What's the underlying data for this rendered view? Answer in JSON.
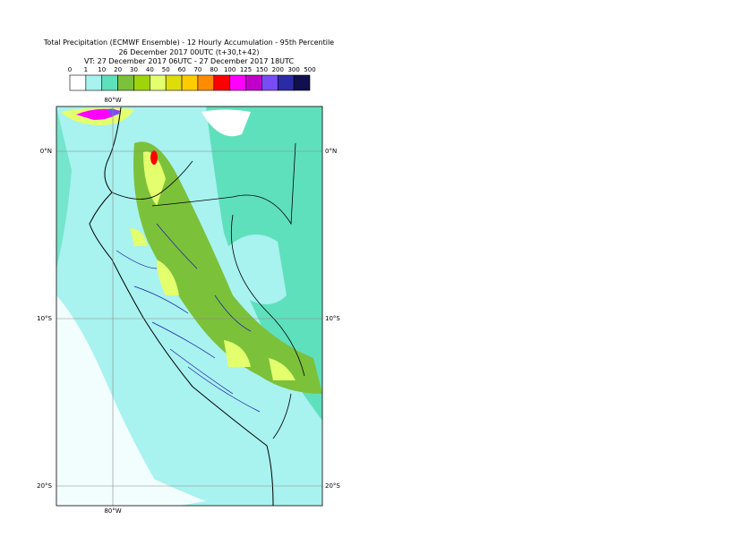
{
  "header": {
    "title_lines": [
      "Total Precipitation (ECMWF Ensemble) - 12 Hourly Accumulation - 95th Percentile",
      "26 December 2017 00UTC (t+30,t+42)",
      "VT: 27 December 2017 06UTC - 27 December 2017 18UTC"
    ]
  },
  "legend": {
    "labels": [
      "0",
      "1",
      "10",
      "20",
      "30",
      "40",
      "50",
      "60",
      "70",
      "80",
      "100",
      "125",
      "150",
      "200",
      "300",
      "500"
    ],
    "colors": [
      "#ffffff",
      "#a8f2ef",
      "#5fe0bd",
      "#7cc13a",
      "#9ed50a",
      "#e4ff6e",
      "#dedd0c",
      "#ffcc00",
      "#ff8c00",
      "#ff0000",
      "#ff00ff",
      "#c000c8",
      "#7a4cf5",
      "#2b2ba6",
      "#10104f"
    ]
  },
  "map": {
    "lon_labels": [
      "80°W",
      "80°W"
    ],
    "lat_labels_left": [
      "0°N",
      "10°S",
      "20°S"
    ],
    "lat_labels_right": [
      "0°N",
      "10°S",
      "20°S"
    ]
  }
}
